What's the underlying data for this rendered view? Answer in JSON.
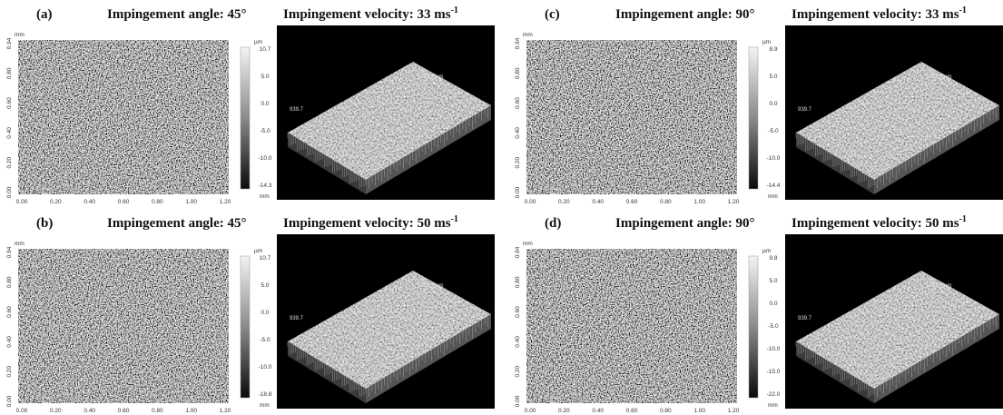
{
  "panels": [
    {
      "label": "(a)",
      "angle_title": "Impingement angle: 45°",
      "velocity_title": "Impingement velocity: 33 ms",
      "velocity_exponent": "-1",
      "x_ticks": [
        "0.00",
        "0.20",
        "0.40",
        "0.60",
        "0.80",
        "1.00",
        "1.20"
      ],
      "y_ticks": [
        "0.00",
        "0.20",
        "0.40",
        "0.60",
        "0.80",
        "0.94"
      ],
      "unit_mm": "mm",
      "unit_um": "µm",
      "colorbar_ticks": [
        "10.7",
        "5.0",
        "0.0",
        "-5.0",
        "-10.0",
        "-14.3"
      ],
      "view3d_length": "1252.9 µm",
      "view3d_width": "939.7"
    },
    {
      "label": "(b)",
      "angle_title": "Impingement angle: 45°",
      "velocity_title": "Impingement velocity: 50 ms",
      "velocity_exponent": "-1",
      "x_ticks": [
        "0.00",
        "0.20",
        "0.40",
        "0.60",
        "0.80",
        "1.00",
        "1.20"
      ],
      "y_ticks": [
        "0.00",
        "0.20",
        "0.40",
        "0.60",
        "0.80",
        "0.94"
      ],
      "unit_mm": "mm",
      "unit_um": "µm",
      "colorbar_ticks": [
        "10.7",
        "5.0",
        "0.0",
        "-5.0",
        "-10.0",
        "-18.8"
      ],
      "view3d_length": "1252.9 µm",
      "view3d_width": "939.7"
    },
    {
      "label": "(c)",
      "angle_title": "Impingement angle: 90°",
      "velocity_title": "Impingement velocity: 33 ms",
      "velocity_exponent": "-1",
      "x_ticks": [
        "0.00",
        "0.20",
        "0.40",
        "0.60",
        "0.80",
        "1.00",
        "1.20"
      ],
      "y_ticks": [
        "0.00",
        "0.20",
        "0.40",
        "0.60",
        "0.80",
        "0.94"
      ],
      "unit_mm": "mm",
      "unit_um": "µm",
      "colorbar_ticks": [
        "8.9",
        "5.0",
        "0.0",
        "-5.0",
        "-10.0",
        "-14.4"
      ],
      "view3d_length": "1252.9 µm",
      "view3d_width": "939.7"
    },
    {
      "label": "(d)",
      "angle_title": "Impingement angle: 90°",
      "velocity_title": "Impingement velocity: 50 ms",
      "velocity_exponent": "-1",
      "x_ticks": [
        "0.00",
        "0.20",
        "0.40",
        "0.60",
        "0.80",
        "1.00",
        "1.20"
      ],
      "y_ticks": [
        "0.00",
        "0.20",
        "0.40",
        "0.60",
        "0.80",
        "0.94"
      ],
      "unit_mm": "mm",
      "unit_um": "µm",
      "colorbar_ticks": [
        "9.8",
        "5.0",
        "0.0",
        "-5.0",
        "-10.0",
        "-15.0",
        "-22.0"
      ],
      "view3d_length": "1252.9 µm",
      "view3d_width": "939.7"
    }
  ]
}
